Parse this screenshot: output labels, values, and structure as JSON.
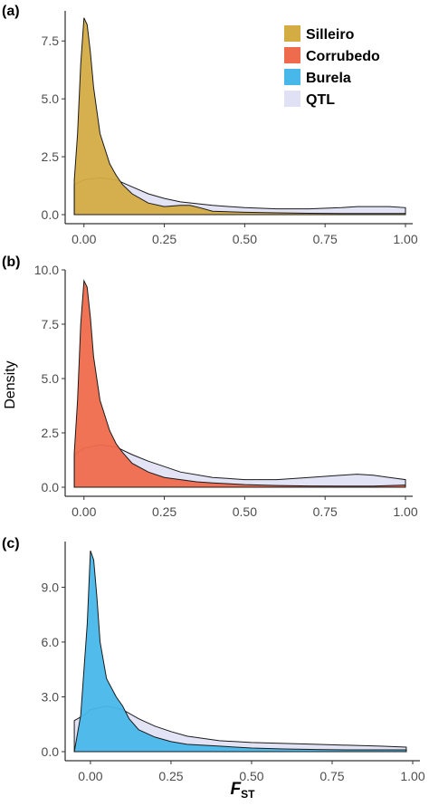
{
  "chart_data": [
    {
      "type": "area",
      "panel_label": "(a)",
      "xlim": [
        -0.05,
        1.0
      ],
      "ylim": [
        0,
        8.8
      ],
      "x_ticks": [
        0.0,
        0.25,
        0.5,
        0.75,
        1.0
      ],
      "x_tick_labels": [
        "0.00",
        "0.25",
        "0.50",
        "0.75",
        "1.00"
      ],
      "y_ticks": [
        0.0,
        2.5,
        5.0,
        7.5
      ],
      "y_tick_labels": [
        "0.0",
        "2.5",
        "5.0",
        "7.5"
      ],
      "series": [
        {
          "name": "QTL",
          "color": "#e1e1f5",
          "x": [
            -0.03,
            0.0,
            0.05,
            0.1,
            0.15,
            0.2,
            0.25,
            0.3,
            0.4,
            0.5,
            0.6,
            0.7,
            0.8,
            0.85,
            0.9,
            0.95,
            1.0
          ],
          "y": [
            1.3,
            1.5,
            1.6,
            1.5,
            1.2,
            0.9,
            0.7,
            0.55,
            0.4,
            0.3,
            0.25,
            0.25,
            0.3,
            0.35,
            0.35,
            0.35,
            0.3
          ]
        },
        {
          "name": "Silleiro",
          "color": "#d4ac44",
          "x": [
            -0.03,
            -0.02,
            -0.01,
            0.0,
            0.01,
            0.02,
            0.03,
            0.05,
            0.08,
            0.1,
            0.12,
            0.15,
            0.2,
            0.25,
            0.3,
            0.33,
            0.36,
            0.4,
            0.5,
            0.6,
            0.7,
            0.8,
            0.9,
            1.0
          ],
          "y": [
            1.5,
            3.5,
            6.5,
            8.5,
            8.2,
            7.0,
            5.5,
            3.5,
            2.2,
            1.7,
            1.3,
            0.9,
            0.5,
            0.35,
            0.4,
            0.4,
            0.3,
            0.15,
            0.1,
            0.08,
            0.06,
            0.05,
            0.05,
            0.05
          ]
        }
      ]
    },
    {
      "type": "area",
      "panel_label": "(b)",
      "ylabel": "Density",
      "xlim": [
        -0.05,
        1.0
      ],
      "ylim": [
        0,
        10.0
      ],
      "x_ticks": [
        0.0,
        0.25,
        0.5,
        0.75,
        1.0
      ],
      "x_tick_labels": [
        "0.00",
        "0.25",
        "0.50",
        "0.75",
        "1.00"
      ],
      "y_ticks": [
        0.0,
        2.5,
        5.0,
        7.5,
        10.0
      ],
      "y_tick_labels": [
        "0.0",
        "2.5",
        "5.0",
        "7.5",
        "10.0"
      ],
      "series": [
        {
          "name": "QTL",
          "color": "#e1e1f5",
          "x": [
            -0.03,
            0.0,
            0.05,
            0.1,
            0.15,
            0.2,
            0.25,
            0.3,
            0.4,
            0.5,
            0.6,
            0.7,
            0.8,
            0.85,
            0.9,
            0.95,
            1.0
          ],
          "y": [
            1.5,
            1.8,
            1.95,
            1.85,
            1.5,
            1.2,
            0.95,
            0.7,
            0.45,
            0.35,
            0.35,
            0.45,
            0.55,
            0.6,
            0.55,
            0.45,
            0.35
          ]
        },
        {
          "name": "Corrubedo",
          "color": "#ef6b4d",
          "x": [
            -0.03,
            -0.02,
            -0.01,
            0.0,
            0.01,
            0.02,
            0.03,
            0.05,
            0.08,
            0.1,
            0.12,
            0.15,
            0.2,
            0.25,
            0.3,
            0.35,
            0.4,
            0.5,
            0.6,
            0.7,
            0.8,
            0.9,
            1.0
          ],
          "y": [
            1.6,
            4.0,
            7.5,
            9.5,
            9.2,
            7.8,
            6.0,
            4.0,
            2.6,
            2.0,
            1.6,
            1.1,
            0.7,
            0.45,
            0.35,
            0.25,
            0.2,
            0.12,
            0.08,
            0.06,
            0.05,
            0.05,
            0.1
          ]
        }
      ]
    },
    {
      "type": "area",
      "panel_label": "(c)",
      "xlabel": "F",
      "xlabel_subscript": "ST",
      "xlim": [
        -0.07,
        1.0
      ],
      "ylim": [
        0,
        11.5
      ],
      "x_ticks": [
        0.0,
        0.25,
        0.5,
        0.75,
        1.0
      ],
      "x_tick_labels": [
        "0.00",
        "0.25",
        "0.50",
        "0.75",
        "1.00"
      ],
      "y_ticks": [
        0.0,
        3.0,
        6.0,
        9.0
      ],
      "y_tick_labels": [
        "0.0",
        "3.0",
        "6.0",
        "9.0"
      ],
      "series": [
        {
          "name": "QTL",
          "color": "#e1e1f5",
          "x": [
            -0.05,
            -0.02,
            0.0,
            0.05,
            0.1,
            0.15,
            0.2,
            0.25,
            0.3,
            0.4,
            0.5,
            0.6,
            0.7,
            0.8,
            0.9,
            0.98
          ],
          "y": [
            1.7,
            2.0,
            2.3,
            2.5,
            2.3,
            1.8,
            1.4,
            1.1,
            0.85,
            0.6,
            0.5,
            0.45,
            0.4,
            0.35,
            0.3,
            0.25
          ]
        },
        {
          "name": "Burela",
          "color": "#48b8ea",
          "x": [
            -0.05,
            -0.03,
            -0.01,
            0.0,
            0.01,
            0.02,
            0.03,
            0.05,
            0.08,
            0.1,
            0.12,
            0.15,
            0.2,
            0.25,
            0.3,
            0.35,
            0.4,
            0.5,
            0.6,
            0.7,
            0.8,
            0.9,
            0.98
          ],
          "y": [
            0.0,
            2.0,
            7.0,
            11.0,
            10.5,
            8.5,
            6.0,
            4.0,
            3.0,
            2.5,
            1.8,
            1.2,
            0.8,
            0.55,
            0.4,
            0.35,
            0.3,
            0.2,
            0.15,
            0.12,
            0.1,
            0.1,
            0.1
          ]
        }
      ]
    }
  ],
  "legend": {
    "position": "top-right",
    "items": [
      {
        "label": "Silleiro",
        "color": "#d4ac44"
      },
      {
        "label": "Corrubedo",
        "color": "#ef6b4d"
      },
      {
        "label": "Burela",
        "color": "#48b8ea"
      },
      {
        "label": "QTL",
        "color": "#e1e1f5"
      }
    ]
  }
}
